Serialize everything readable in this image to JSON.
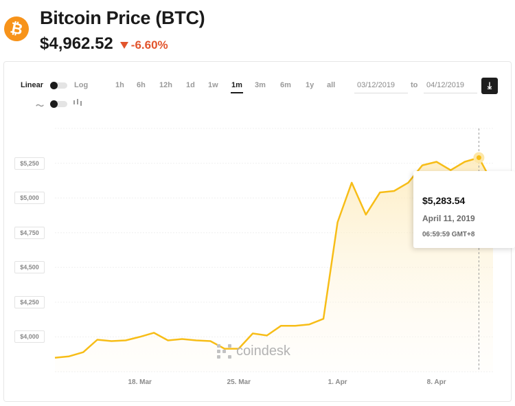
{
  "header": {
    "logo_symbol": "₿",
    "title": "Bitcoin Price",
    "ticker": "(BTC)",
    "price": "$4,962.52",
    "change": "-6.60%",
    "change_direction": "down",
    "change_color": "#e2542c",
    "logo_color": "#f7931a"
  },
  "controls": {
    "scale_linear": "Linear",
    "scale_log": "Log",
    "timeframes": [
      "1h",
      "6h",
      "12h",
      "1d",
      "1w",
      "1m",
      "3m",
      "6m",
      "1y",
      "all"
    ],
    "active_timeframe": "1m",
    "date_from": "03/12/2019",
    "date_to": "04/12/2019",
    "date_separator": "to",
    "download_icon": "download-icon"
  },
  "tooltip": {
    "price": "$5,283.54",
    "date": "April 11, 2019",
    "time": "06:59:59 GMT+8"
  },
  "watermark": "coindesk",
  "chart_data": {
    "type": "area",
    "line_color": "#f7bd17",
    "x_tick_labels": [
      "18. Mar",
      "25. Mar",
      "1. Apr",
      "8. Apr"
    ],
    "y_tick_labels": [
      "$4,000",
      "$4,250",
      "$4,500",
      "$4,750",
      "$5,000",
      "$5,250"
    ],
    "y_ticks": [
      4000,
      4250,
      4500,
      4750,
      5000,
      5250
    ],
    "ylim": [
      3750,
      5500
    ],
    "x_range": [
      "2019-03-12",
      "2019-04-12"
    ],
    "grid": true,
    "x": [
      "2019-03-12",
      "2019-03-13",
      "2019-03-14",
      "2019-03-15",
      "2019-03-16",
      "2019-03-17",
      "2019-03-18",
      "2019-03-19",
      "2019-03-20",
      "2019-03-21",
      "2019-03-22",
      "2019-03-23",
      "2019-03-24",
      "2019-03-25",
      "2019-03-26",
      "2019-03-27",
      "2019-03-28",
      "2019-03-29",
      "2019-03-30",
      "2019-03-31",
      "2019-04-01",
      "2019-04-02",
      "2019-04-03",
      "2019-04-04",
      "2019-04-05",
      "2019-04-06",
      "2019-04-07",
      "2019-04-08",
      "2019-04-09",
      "2019-04-10",
      "2019-04-11",
      "2019-04-12"
    ],
    "values": [
      3850,
      3860,
      3890,
      3980,
      3970,
      3975,
      4000,
      4030,
      3975,
      3985,
      3975,
      3970,
      3915,
      3915,
      4025,
      4010,
      4080,
      4080,
      4090,
      4130,
      4825,
      5110,
      4880,
      5040,
      5050,
      5110,
      5235,
      5260,
      5200,
      5260,
      5290,
      5100
    ]
  }
}
